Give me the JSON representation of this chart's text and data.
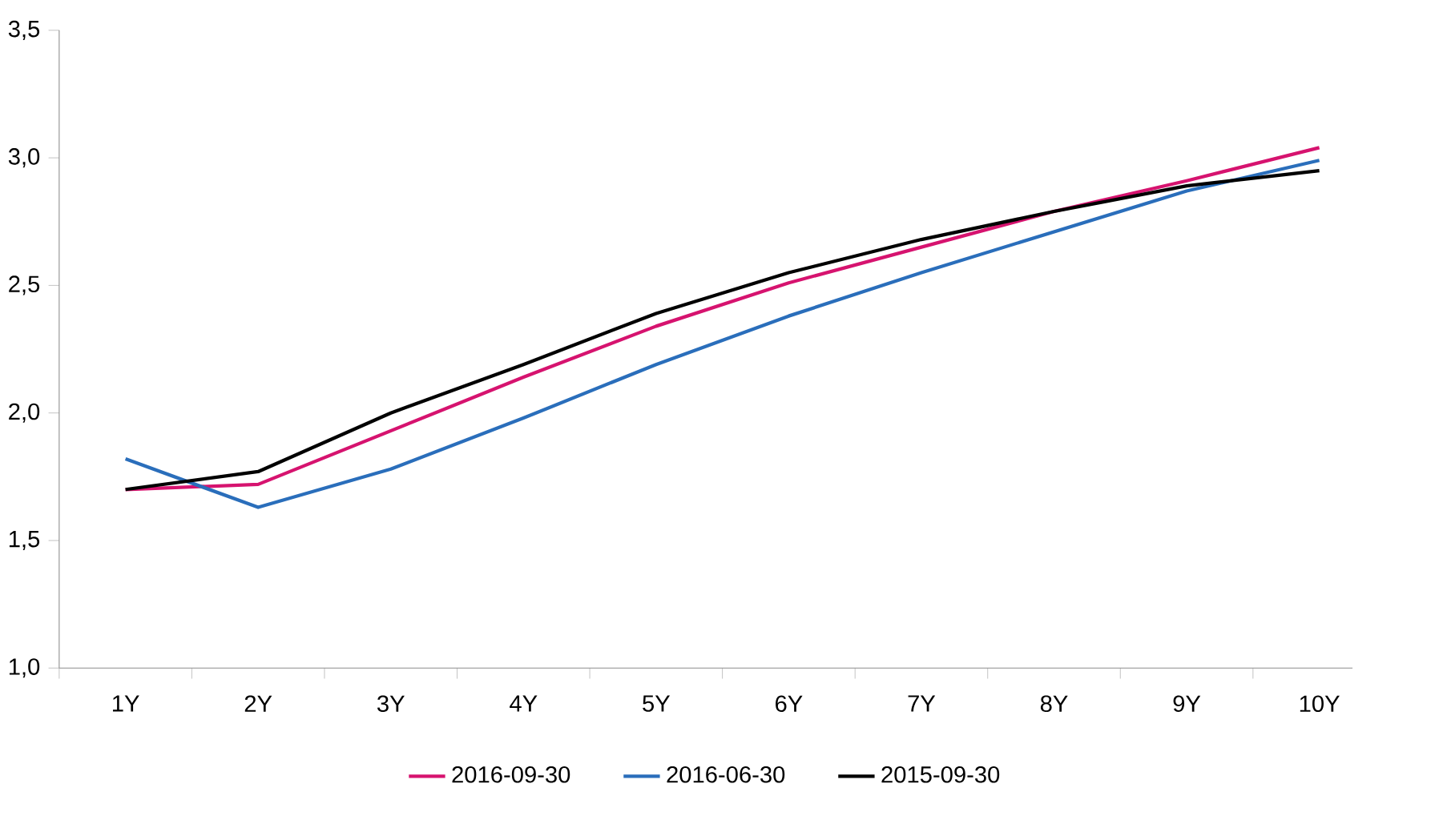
{
  "chart_data": {
    "type": "line",
    "categories": [
      "1Y",
      "2Y",
      "3Y",
      "4Y",
      "5Y",
      "6Y",
      "7Y",
      "8Y",
      "9Y",
      "10Y"
    ],
    "series": [
      {
        "name": "2016-09-30",
        "color": "#d6136f",
        "values": [
          1.7,
          1.72,
          1.93,
          2.14,
          2.34,
          2.51,
          2.65,
          2.79,
          2.91,
          3.04
        ]
      },
      {
        "name": "2016-06-30",
        "color": "#2a6ebb",
        "values": [
          1.82,
          1.63,
          1.78,
          1.98,
          2.19,
          2.38,
          2.55,
          2.71,
          2.87,
          2.99
        ]
      },
      {
        "name": "2015-09-30",
        "color": "#000000",
        "values": [
          1.7,
          1.77,
          2.0,
          2.19,
          2.39,
          2.55,
          2.68,
          2.79,
          2.89,
          2.95
        ]
      }
    ],
    "ylim": [
      1.0,
      3.5
    ],
    "yticks": [
      {
        "value": 1.0,
        "label": "1,0"
      },
      {
        "value": 1.5,
        "label": "1,5"
      },
      {
        "value": 2.0,
        "label": "2,0"
      },
      {
        "value": 2.5,
        "label": "2,5"
      },
      {
        "value": 3.0,
        "label": "3,0"
      },
      {
        "value": 3.5,
        "label": "3,5"
      }
    ],
    "legend": "bottom",
    "marker": "none",
    "line_style": "solid"
  }
}
